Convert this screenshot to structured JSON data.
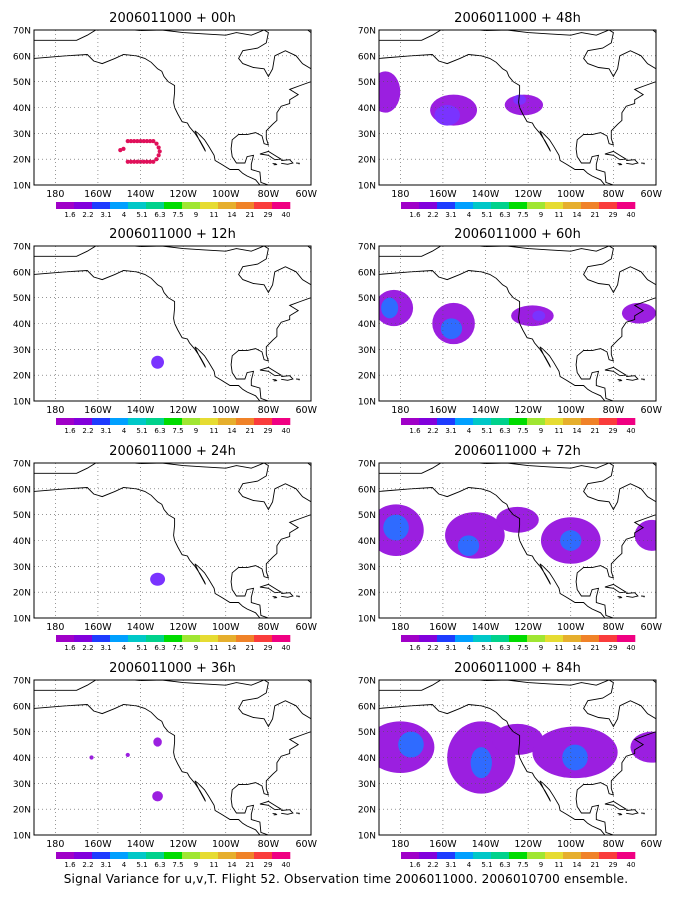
{
  "figure": {
    "caption": "Signal Variance for u,v,T. Flight 52. Observation time 2006011000. 2006010700 ensemble."
  },
  "axes": {
    "lat_labels": [
      "10N",
      "20N",
      "30N",
      "40N",
      "50N",
      "60N",
      "70N"
    ],
    "lon_labels": [
      "180",
      "160W",
      "140W",
      "120W",
      "100W",
      "80W",
      "60W"
    ]
  },
  "colorbar": {
    "labels": [
      "1.6",
      "2.2",
      "3.1",
      "4",
      "5.1",
      "6.3",
      "7.5",
      "9",
      "11",
      "14",
      "21",
      "29",
      "40"
    ],
    "colors": [
      "#a000c8",
      "#8200dc",
      "#1e3cff",
      "#00a0ff",
      "#00c8c8",
      "#00d28c",
      "#00dc00",
      "#a0e632",
      "#e6dc32",
      "#e6af2d",
      "#f08228",
      "#fa3c3c",
      "#f00082"
    ]
  },
  "panels": [
    {
      "title": "2006011000 + 00h"
    },
    {
      "title": "2006011000 + 48h"
    },
    {
      "title": "2006011000 + 12h"
    },
    {
      "title": "2006011000 + 60h"
    },
    {
      "title": "2006011000 + 24h"
    },
    {
      "title": "2006011000 + 72h"
    },
    {
      "title": "2006011000 + 36h"
    },
    {
      "title": "2006011000 + 84h"
    }
  ]
}
